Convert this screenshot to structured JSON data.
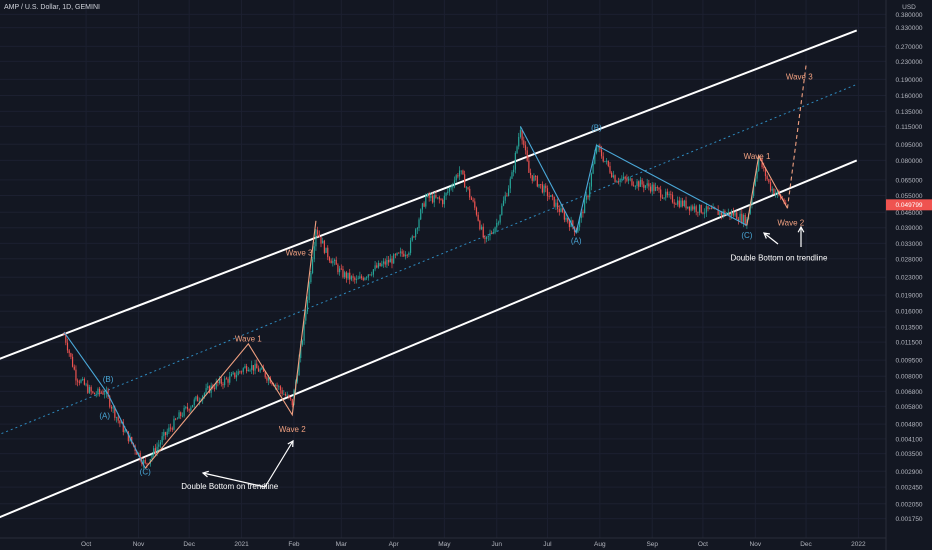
{
  "header": {
    "title": "AMP / U.S. Dollar, 1D, GEMINI"
  },
  "chart_data": {
    "type": "candlestick",
    "title": "AMP / U.S. Dollar, 1D, GEMINI",
    "y_scale": "log",
    "currency": "USD",
    "price_axis_ticks": [
      "0.380000",
      "0.330000",
      "0.270000",
      "0.230000",
      "0.190000",
      "0.160000",
      "0.135000",
      "0.115000",
      "0.095000",
      "0.080000",
      "0.065000",
      "0.055000",
      "0.046000",
      "0.039000",
      "0.033000",
      "0.028000",
      "0.023000",
      "0.019000",
      "0.016000",
      "0.013500",
      "0.011500",
      "0.009500",
      "0.008000",
      "0.006800",
      "0.005800",
      "0.004800",
      "0.004100",
      "0.003500",
      "0.002900",
      "0.002450",
      "0.002050",
      "0.001750"
    ],
    "price_axis_top_label": "USD",
    "last_price_label": "0.049799",
    "time_axis_ticks": [
      "Oct",
      "Nov",
      "Dec",
      "2021",
      "Feb",
      "Mar",
      "Apr",
      "May",
      "Jun",
      "Jul",
      "Aug",
      "Sep",
      "Oct",
      "Nov",
      "Dec",
      "2022"
    ],
    "price_series": [
      {
        "date": "2020-09-18",
        "close": 0.0125
      },
      {
        "date": "2020-09-25",
        "close": 0.008
      },
      {
        "date": "2020-10-05",
        "close": 0.0066
      },
      {
        "date": "2020-10-12",
        "close": 0.0068
      },
      {
        "date": "2020-10-20",
        "close": 0.005
      },
      {
        "date": "2020-10-30",
        "close": 0.0037
      },
      {
        "date": "2020-11-05",
        "close": 0.0031
      },
      {
        "date": "2020-11-15",
        "close": 0.0041
      },
      {
        "date": "2020-11-25",
        "close": 0.0052
      },
      {
        "date": "2020-12-05",
        "close": 0.0062
      },
      {
        "date": "2020-12-15",
        "close": 0.0072
      },
      {
        "date": "2020-12-25",
        "close": 0.0078
      },
      {
        "date": "2021-01-05",
        "close": 0.009
      },
      {
        "date": "2021-01-12",
        "close": 0.0085
      },
      {
        "date": "2021-01-20",
        "close": 0.0075
      },
      {
        "date": "2021-01-31",
        "close": 0.006
      },
      {
        "date": "2021-02-06",
        "close": 0.012
      },
      {
        "date": "2021-02-14",
        "close": 0.039
      },
      {
        "date": "2021-02-20",
        "close": 0.03
      },
      {
        "date": "2021-03-01",
        "close": 0.024
      },
      {
        "date": "2021-03-10",
        "close": 0.022
      },
      {
        "date": "2021-03-20",
        "close": 0.025
      },
      {
        "date": "2021-04-01",
        "close": 0.028
      },
      {
        "date": "2021-04-10",
        "close": 0.031
      },
      {
        "date": "2021-04-20",
        "close": 0.054
      },
      {
        "date": "2021-04-30",
        "close": 0.052
      },
      {
        "date": "2021-05-10",
        "close": 0.072
      },
      {
        "date": "2021-05-20",
        "close": 0.046
      },
      {
        "date": "2021-05-25",
        "close": 0.033
      },
      {
        "date": "2021-06-01",
        "close": 0.041
      },
      {
        "date": "2021-06-10",
        "close": 0.068
      },
      {
        "date": "2021-06-15",
        "close": 0.115
      },
      {
        "date": "2021-06-20",
        "close": 0.07
      },
      {
        "date": "2021-07-01",
        "close": 0.056
      },
      {
        "date": "2021-07-10",
        "close": 0.045
      },
      {
        "date": "2021-07-18",
        "close": 0.038
      },
      {
        "date": "2021-07-25",
        "close": 0.056
      },
      {
        "date": "2021-07-30",
        "close": 0.093
      },
      {
        "date": "2021-08-10",
        "close": 0.066
      },
      {
        "date": "2021-08-20",
        "close": 0.064
      },
      {
        "date": "2021-09-01",
        "close": 0.06
      },
      {
        "date": "2021-09-10",
        "close": 0.054
      },
      {
        "date": "2021-09-20",
        "close": 0.05
      },
      {
        "date": "2021-10-01",
        "close": 0.047
      },
      {
        "date": "2021-10-10",
        "close": 0.046
      },
      {
        "date": "2021-10-20",
        "close": 0.045
      },
      {
        "date": "2021-10-27",
        "close": 0.042
      },
      {
        "date": "2021-11-03",
        "close": 0.082
      },
      {
        "date": "2021-11-10",
        "close": 0.06
      },
      {
        "date": "2021-11-20",
        "close": 0.0498
      }
    ],
    "channel": {
      "upper": [
        {
          "date": "2020-08-01",
          "price": 0.009
        },
        {
          "date": "2021-12-31",
          "price": 0.32
        }
      ],
      "lower": [
        {
          "date": "2020-08-01",
          "price": 0.00165
        },
        {
          "date": "2021-12-31",
          "price": 0.08
        }
      ],
      "midline_dashed": [
        {
          "date": "2020-08-01",
          "price": 0.004
        },
        {
          "date": "2021-12-31",
          "price": 0.18
        }
      ]
    },
    "wave_labels": [
      {
        "text": "(A)",
        "date": "2020-10-12",
        "price": 0.0051,
        "color": "#4aa8d8"
      },
      {
        "text": "(B)",
        "date": "2020-10-14",
        "price": 0.0075,
        "color": "#4aa8d8"
      },
      {
        "text": "(C)",
        "date": "2020-11-05",
        "price": 0.0028,
        "color": "#4aa8d8"
      },
      {
        "text": "Wave 1",
        "date": "2021-01-05",
        "price": 0.0116,
        "color": "#f0a080"
      },
      {
        "text": "Wave 2",
        "date": "2021-01-31",
        "price": 0.0044,
        "color": "#f0a080"
      },
      {
        "text": "Wave 3",
        "date": "2021-02-04",
        "price": 0.029,
        "color": "#f0a080"
      },
      {
        "text": "(A)",
        "date": "2021-07-18",
        "price": 0.033,
        "color": "#4aa8d8"
      },
      {
        "text": "(B)",
        "date": "2021-07-30",
        "price": 0.11,
        "color": "#4aa8d8"
      },
      {
        "text": "(C)",
        "date": "2021-10-27",
        "price": 0.035,
        "color": "#4aa8d8"
      },
      {
        "text": "Wave 1",
        "date": "2021-11-02",
        "price": 0.081,
        "color": "#f0a080"
      },
      {
        "text": "Wave 2",
        "date": "2021-11-22",
        "price": 0.04,
        "color": "#f0a080"
      },
      {
        "text": "Wave 3",
        "date": "2021-11-27",
        "price": 0.19,
        "color": "#f0a080"
      }
    ],
    "wave_paths": {
      "corrective_1": [
        {
          "date": "2020-09-18",
          "price": 0.0128
        },
        {
          "date": "2020-10-14",
          "price": 0.0066
        },
        {
          "date": "2020-11-05",
          "price": 0.003
        }
      ],
      "impulse_1": [
        {
          "date": "2020-11-05",
          "price": 0.003
        },
        {
          "date": "2021-01-05",
          "price": 0.0113
        },
        {
          "date": "2021-01-31",
          "price": 0.0053
        },
        {
          "date": "2021-02-14",
          "price": 0.042
        }
      ],
      "corrective_2": [
        {
          "date": "2021-06-15",
          "price": 0.115
        },
        {
          "date": "2021-07-18",
          "price": 0.037
        },
        {
          "date": "2021-07-30",
          "price": 0.094
        },
        {
          "date": "2021-10-27",
          "price": 0.04
        }
      ],
      "impulse_2": [
        {
          "date": "2021-10-27",
          "price": 0.04
        },
        {
          "date": "2021-11-03",
          "price": 0.084
        },
        {
          "date": "2021-11-20",
          "price": 0.048
        }
      ],
      "projection_dashed": [
        {
          "date": "2021-11-20",
          "price": 0.048
        },
        {
          "date": "2021-12-01",
          "price": 0.22
        }
      ]
    },
    "annotations": [
      {
        "text": "Double Bottom on trendline",
        "date": "2020-12-25",
        "price": 0.0024
      },
      {
        "text": "Double Bottom on trendline",
        "date": "2021-11-15",
        "price": 0.0275
      }
    ],
    "colors": {
      "background": "#131722",
      "up": "#26a69a",
      "down": "#ef5350",
      "channel": "#ffffff",
      "mid": "#2e8bc0",
      "wave_abc": "#4aa8d8",
      "wave_impulse": "#f0a080",
      "last_price": "#ef5350"
    }
  }
}
